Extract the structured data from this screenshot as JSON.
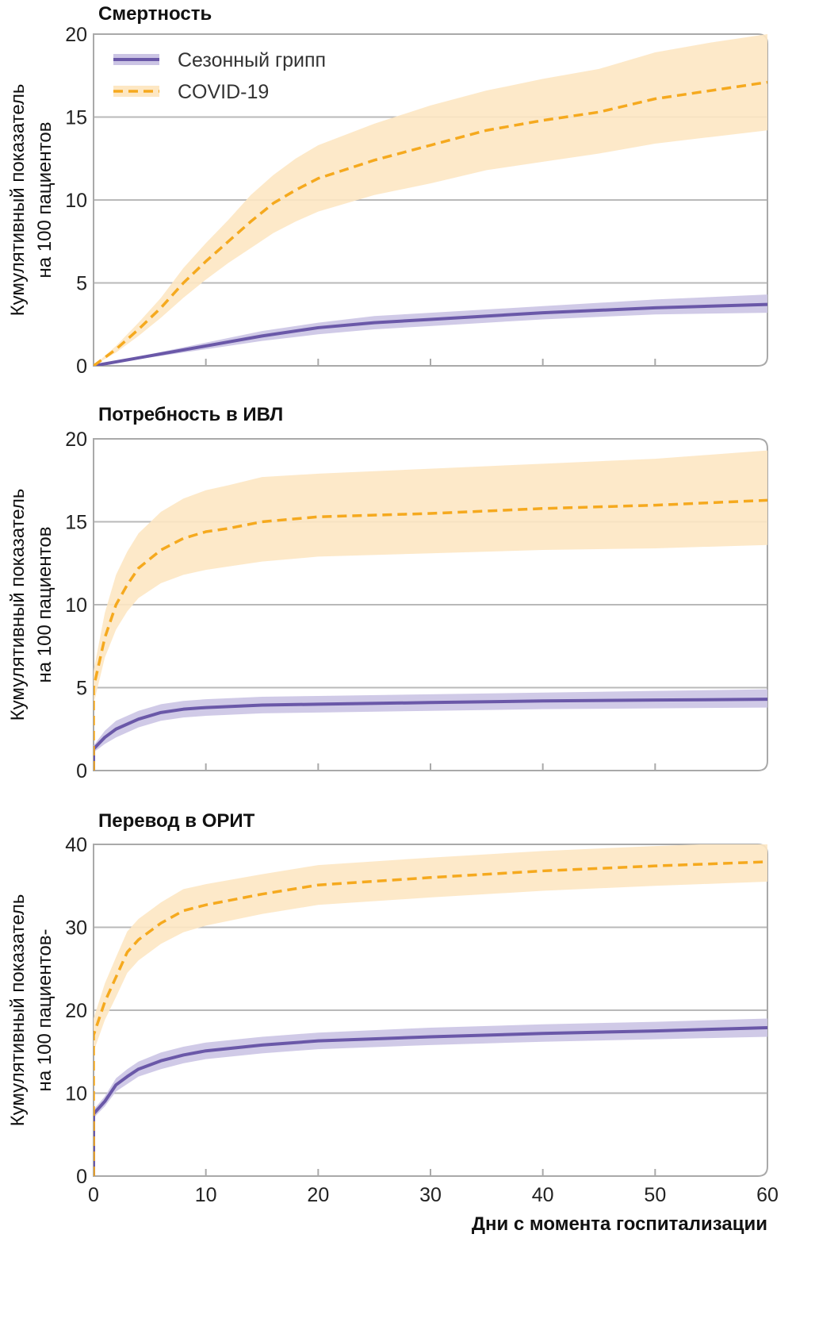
{
  "chart_data": [
    {
      "type": "line",
      "title": "Смертность",
      "ylabel": [
        "Кумулятивный показатель",
        "на 100 пациентов"
      ],
      "xlabel": "",
      "xlim": [
        0,
        60
      ],
      "ylim": [
        0,
        20
      ],
      "yticks": [
        0,
        5,
        10,
        15,
        20
      ],
      "xticks": [
        0,
        10,
        20,
        30,
        40,
        50,
        60
      ],
      "show_xtick_labels": false,
      "legend": {
        "placement": "top-left",
        "entries": [
          "Сезонный грипп",
          "COVID-19"
        ]
      },
      "series": [
        {
          "name": "Сезонный грипп",
          "style": "solid",
          "x": [
            0,
            5,
            10,
            15,
            20,
            25,
            30,
            40,
            50,
            60
          ],
          "y": [
            0,
            0.6,
            1.2,
            1.8,
            2.3,
            2.6,
            2.8,
            3.2,
            3.5,
            3.7
          ],
          "lower": [
            0,
            0.5,
            1.0,
            1.5,
            1.9,
            2.2,
            2.4,
            2.8,
            3.1,
            3.2
          ],
          "upper": [
            0,
            0.7,
            1.4,
            2.1,
            2.6,
            3.0,
            3.2,
            3.6,
            4.0,
            4.3
          ]
        },
        {
          "name": "COVID-19",
          "style": "dashed",
          "x": [
            0,
            2,
            4,
            6,
            8,
            10,
            12,
            14,
            16,
            18,
            20,
            25,
            30,
            35,
            40,
            45,
            50,
            55,
            60
          ],
          "y": [
            0,
            1.0,
            2.2,
            3.5,
            5.0,
            6.3,
            7.5,
            8.7,
            9.8,
            10.6,
            11.3,
            12.4,
            13.3,
            14.2,
            14.8,
            15.3,
            16.1,
            16.6,
            17.1
          ],
          "lower": [
            0,
            0.8,
            1.8,
            2.9,
            4.1,
            5.2,
            6.2,
            7.1,
            8.0,
            8.7,
            9.3,
            10.3,
            11.0,
            11.8,
            12.3,
            12.8,
            13.4,
            13.8,
            14.2
          ],
          "upper": [
            0,
            1.2,
            2.6,
            4.1,
            5.9,
            7.4,
            8.8,
            10.3,
            11.5,
            12.5,
            13.3,
            14.6,
            15.7,
            16.6,
            17.3,
            17.9,
            18.9,
            19.5,
            20.0
          ]
        }
      ]
    },
    {
      "type": "line",
      "title": "Потребность в ИВЛ",
      "ylabel": [
        "Кумулятивный показатель",
        "на 100 пациентов"
      ],
      "xlabel": "",
      "xlim": [
        0,
        60
      ],
      "ylim": [
        0,
        20
      ],
      "yticks": [
        0,
        5,
        10,
        15,
        20
      ],
      "xticks": [
        0,
        10,
        20,
        30,
        40,
        50,
        60
      ],
      "show_xtick_labels": false,
      "series": [
        {
          "name": "Сезонный грипп",
          "style": "solid",
          "x": [
            0,
            0,
            1,
            2,
            4,
            6,
            8,
            10,
            15,
            20,
            30,
            40,
            50,
            60
          ],
          "y": [
            0,
            1.3,
            2.0,
            2.5,
            3.1,
            3.5,
            3.7,
            3.8,
            3.95,
            4.0,
            4.1,
            4.2,
            4.25,
            4.3
          ],
          "lower": [
            0,
            1.1,
            1.6,
            2.0,
            2.6,
            3.0,
            3.2,
            3.3,
            3.45,
            3.5,
            3.6,
            3.7,
            3.75,
            3.8
          ],
          "upper": [
            0,
            1.5,
            2.4,
            3.0,
            3.6,
            4.0,
            4.2,
            4.3,
            4.45,
            4.5,
            4.6,
            4.7,
            4.8,
            4.9
          ]
        },
        {
          "name": "COVID-19",
          "style": "dashed",
          "x": [
            0,
            0,
            1,
            2,
            3,
            4,
            6,
            8,
            10,
            12,
            15,
            20,
            30,
            40,
            50,
            60
          ],
          "y": [
            0,
            5.0,
            8.0,
            10.0,
            11.2,
            12.2,
            13.3,
            14.0,
            14.4,
            14.6,
            15.0,
            15.3,
            15.5,
            15.8,
            16.0,
            16.3
          ],
          "lower": [
            0,
            4.0,
            6.8,
            8.5,
            9.6,
            10.4,
            11.3,
            11.8,
            12.1,
            12.3,
            12.6,
            12.9,
            13.1,
            13.3,
            13.4,
            13.6
          ],
          "upper": [
            0,
            6.0,
            9.5,
            11.8,
            13.2,
            14.3,
            15.6,
            16.4,
            16.9,
            17.2,
            17.7,
            17.9,
            18.2,
            18.5,
            18.8,
            19.3
          ]
        }
      ]
    },
    {
      "type": "line",
      "title": "Перевод в ОРИТ",
      "ylabel": [
        "Кумулятивный показатель",
        "на 100 пациентов-"
      ],
      "xlabel": "Дни с момента госпитализации",
      "xlim": [
        0,
        60
      ],
      "ylim": [
        0,
        40
      ],
      "yticks": [
        0,
        10,
        20,
        30,
        40
      ],
      "xticks": [
        0,
        10,
        20,
        30,
        40,
        50,
        60
      ],
      "show_xtick_labels": true,
      "series": [
        {
          "name": "Сезонный грипп",
          "style": "solid",
          "x": [
            0,
            0,
            1,
            2,
            3,
            4,
            6,
            8,
            10,
            15,
            20,
            30,
            40,
            50,
            60
          ],
          "y": [
            0,
            7.5,
            9.0,
            11.0,
            12.0,
            12.9,
            13.9,
            14.6,
            15.1,
            15.8,
            16.3,
            16.8,
            17.2,
            17.5,
            17.9
          ],
          "lower": [
            0,
            7.0,
            8.4,
            10.2,
            11.1,
            12.0,
            12.9,
            13.6,
            14.1,
            14.8,
            15.3,
            15.8,
            16.2,
            16.5,
            16.8
          ],
          "upper": [
            0,
            8.0,
            9.6,
            11.8,
            12.9,
            13.8,
            14.9,
            15.6,
            16.1,
            16.8,
            17.3,
            17.9,
            18.3,
            18.6,
            19.0
          ]
        },
        {
          "name": "COVID-19",
          "style": "dashed",
          "x": [
            0,
            0,
            1,
            2,
            3,
            4,
            6,
            8,
            10,
            15,
            20,
            30,
            40,
            50,
            60
          ],
          "y": [
            0,
            17.0,
            21.0,
            24.0,
            27.0,
            28.5,
            30.5,
            32.0,
            32.7,
            34.0,
            35.1,
            36.0,
            36.8,
            37.4,
            37.9
          ],
          "lower": [
            0,
            15.0,
            18.8,
            21.6,
            24.5,
            26.0,
            28.0,
            29.4,
            30.2,
            31.6,
            32.7,
            33.6,
            34.4,
            35.0,
            35.5
          ],
          "upper": [
            0,
            19.0,
            23.2,
            26.4,
            29.5,
            31.0,
            33.0,
            34.6,
            35.2,
            36.4,
            37.5,
            38.4,
            39.2,
            39.8,
            40.3
          ]
        }
      ]
    }
  ],
  "colors": {
    "flu_line": "#6a58a8",
    "flu_band": "#cbc4e4",
    "covid_line": "#f5a91e",
    "covid_band": "#fde7c3",
    "grid": "#b9b9b9",
    "frame": "#a9a9a9"
  }
}
